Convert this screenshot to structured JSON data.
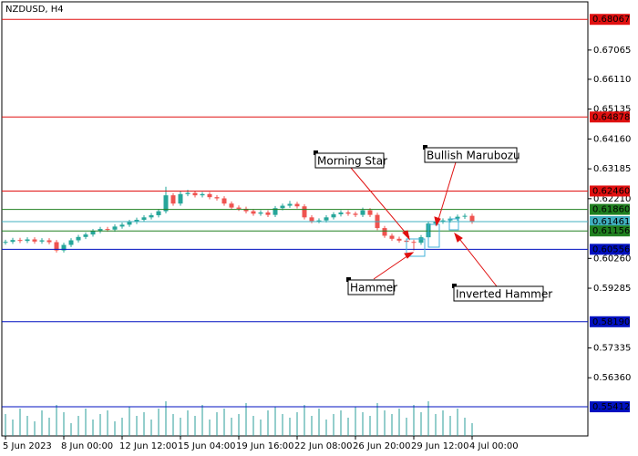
{
  "chart_data": {
    "type": "candlestick",
    "title": "NZDUSD, H4",
    "categories": [
      "5 Jun 2023",
      null,
      null,
      null,
      null,
      null,
      null,
      null,
      "8 Jun 00:00",
      null,
      null,
      null,
      null,
      null,
      null,
      null,
      "12 Jun 12:00",
      null,
      null,
      null,
      null,
      null,
      null,
      null,
      "15 Jun 04:00",
      null,
      null,
      null,
      null,
      null,
      null,
      null,
      "19 Jun 16:00",
      null,
      null,
      null,
      null,
      null,
      null,
      null,
      "22 Jun 08:00",
      null,
      null,
      null,
      null,
      null,
      null,
      null,
      "26 Jun 20:00",
      null,
      null,
      null,
      null,
      null,
      null,
      null,
      "29 Jun 12:00",
      null,
      null,
      null,
      null,
      null,
      null,
      null,
      "4 Jul 00:00"
    ],
    "open": [
      0.6078,
      0.608,
      0.6086,
      0.6083,
      0.6088,
      0.6081,
      0.6085,
      0.6079,
      0.6052,
      0.607,
      0.6085,
      0.6096,
      0.6104,
      0.6115,
      0.6122,
      0.612,
      0.613,
      0.6136,
      0.6145,
      0.6152,
      0.616,
      0.6167,
      0.618,
      0.6232,
      0.6205,
      0.6236,
      0.624,
      0.6232,
      0.6236,
      0.6226,
      0.6222,
      0.6205,
      0.6192,
      0.6188,
      0.618,
      0.6172,
      0.6176,
      0.6168,
      0.619,
      0.6198,
      0.6204,
      0.6196,
      0.616,
      0.6148,
      0.615,
      0.616,
      0.617,
      0.6176,
      0.6172,
      0.6168,
      0.6183,
      0.6168,
      0.6125,
      0.61,
      0.609,
      0.6084,
      0.608,
      0.6077,
      0.6095,
      0.614,
      0.6146,
      0.615,
      0.6156,
      0.6162,
      0.6165
    ],
    "high": [
      0.6087,
      0.6093,
      0.6093,
      0.6095,
      0.6095,
      0.6092,
      0.6092,
      0.6086,
      0.6077,
      0.6092,
      0.6103,
      0.6111,
      0.6122,
      0.6129,
      0.6129,
      0.6137,
      0.6143,
      0.6152,
      0.6159,
      0.6167,
      0.6174,
      0.6187,
      0.626,
      0.6239,
      0.6245,
      0.625,
      0.6247,
      0.6243,
      0.6243,
      0.6233,
      0.6229,
      0.6212,
      0.6199,
      0.6195,
      0.6187,
      0.6183,
      0.6183,
      0.6197,
      0.6205,
      0.6214,
      0.6211,
      0.6203,
      0.6167,
      0.6157,
      0.6167,
      0.6177,
      0.6183,
      0.6183,
      0.6179,
      0.6192,
      0.619,
      0.6175,
      0.6132,
      0.6107,
      0.6097,
      0.6091,
      0.6087,
      0.6102,
      0.6147,
      0.6153,
      0.6157,
      0.6163,
      0.6169,
      0.6172,
      0.6172
    ],
    "low": [
      0.6071,
      0.6073,
      0.6076,
      0.6076,
      0.6074,
      0.6074,
      0.6072,
      0.6045,
      0.6045,
      0.6063,
      0.6078,
      0.6089,
      0.6097,
      0.6108,
      0.6113,
      0.6113,
      0.6123,
      0.6129,
      0.6138,
      0.6145,
      0.6153,
      0.616,
      0.6173,
      0.6198,
      0.6198,
      0.6229,
      0.6225,
      0.6225,
      0.6219,
      0.6215,
      0.6198,
      0.6185,
      0.6181,
      0.6173,
      0.6165,
      0.6165,
      0.6161,
      0.6161,
      0.6183,
      0.6191,
      0.6189,
      0.6153,
      0.6141,
      0.6141,
      0.6143,
      0.6153,
      0.6163,
      0.6165,
      0.6161,
      0.6161,
      0.6161,
      0.6118,
      0.6093,
      0.6083,
      0.6077,
      0.6073,
      0.6052,
      0.607,
      0.6088,
      0.6133,
      0.6139,
      0.6143,
      0.6149,
      0.6155,
      0.6139
    ],
    "close": [
      0.608,
      0.6086,
      0.6083,
      0.6088,
      0.6081,
      0.6085,
      0.6079,
      0.6052,
      0.607,
      0.6085,
      0.6096,
      0.6104,
      0.6115,
      0.6122,
      0.612,
      0.613,
      0.6136,
      0.6145,
      0.6152,
      0.616,
      0.6167,
      0.618,
      0.6232,
      0.6205,
      0.6236,
      0.624,
      0.6232,
      0.6236,
      0.6226,
      0.6222,
      0.6205,
      0.6192,
      0.6188,
      0.618,
      0.6172,
      0.6176,
      0.6168,
      0.619,
      0.6198,
      0.6204,
      0.6196,
      0.616,
      0.6148,
      0.615,
      0.616,
      0.617,
      0.6176,
      0.6172,
      0.6168,
      0.6183,
      0.6168,
      0.6125,
      0.61,
      0.609,
      0.6084,
      0.608,
      0.6077,
      0.6095,
      0.614,
      0.6146,
      0.615,
      0.6156,
      0.6162,
      0.6165,
      0.6146
    ],
    "volumes": [
      24,
      18,
      30,
      22,
      16,
      28,
      20,
      34,
      26,
      14,
      22,
      30,
      18,
      24,
      28,
      16,
      20,
      32,
      22,
      26,
      18,
      30,
      38,
      24,
      20,
      28,
      22,
      34,
      18,
      26,
      30,
      20,
      24,
      36,
      22,
      18,
      28,
      32,
      24,
      20,
      26,
      34,
      22,
      30,
      18,
      24,
      28,
      20,
      32,
      26,
      22,
      36,
      28,
      24,
      30,
      20,
      34,
      26,
      38,
      24,
      28,
      22,
      30,
      20,
      14
    ],
    "ylim": [
      0.5446,
      0.6864
    ],
    "yticks": [
      {
        "value": 0.67065,
        "label": "0.67065"
      },
      {
        "value": 0.6611,
        "label": "0.66110"
      },
      {
        "value": 0.65135,
        "label": "0.65135"
      },
      {
        "value": 0.6416,
        "label": "0.64160"
      },
      {
        "value": 0.63185,
        "label": "0.63185"
      },
      {
        "value": 0.6221,
        "label": "0.62210"
      },
      {
        "value": 0.6026,
        "label": "0.60260"
      },
      {
        "value": 0.59285,
        "label": "0.59285"
      },
      {
        "value": 0.57335,
        "label": "0.57335"
      },
      {
        "value": 0.5636,
        "label": "0.56360"
      }
    ],
    "levels": [
      {
        "value": 0.68067,
        "label": "0.68067",
        "color": "#e01010"
      },
      {
        "value": 0.64878,
        "label": "0.64878",
        "color": "#e01010"
      },
      {
        "value": 0.6246,
        "label": "0.62460",
        "color": "#e01010"
      },
      {
        "value": 0.6186,
        "label": "0.61860",
        "color": "#208020"
      },
      {
        "value": 0.61461,
        "label": "0.61461",
        "color": "#40b0c0"
      },
      {
        "value": 0.61156,
        "label": "0.61156",
        "color": "#208020"
      },
      {
        "value": 0.60556,
        "label": "0.60556",
        "color": "#0010c0"
      },
      {
        "value": 0.5819,
        "label": "0.58190",
        "color": "#0010c0"
      },
      {
        "value": 0.55412,
        "label": "0.55412",
        "color": "#0010c0"
      }
    ],
    "up_color": "#26a69a",
    "down_color": "#ef5350",
    "volume_color": "#2a9d9a",
    "annotations": [
      {
        "text": "Morning Star"
      },
      {
        "text": "Bullish Marubozu"
      },
      {
        "text": "Hammer"
      },
      {
        "text": "Inverted Hammer"
      }
    ]
  }
}
